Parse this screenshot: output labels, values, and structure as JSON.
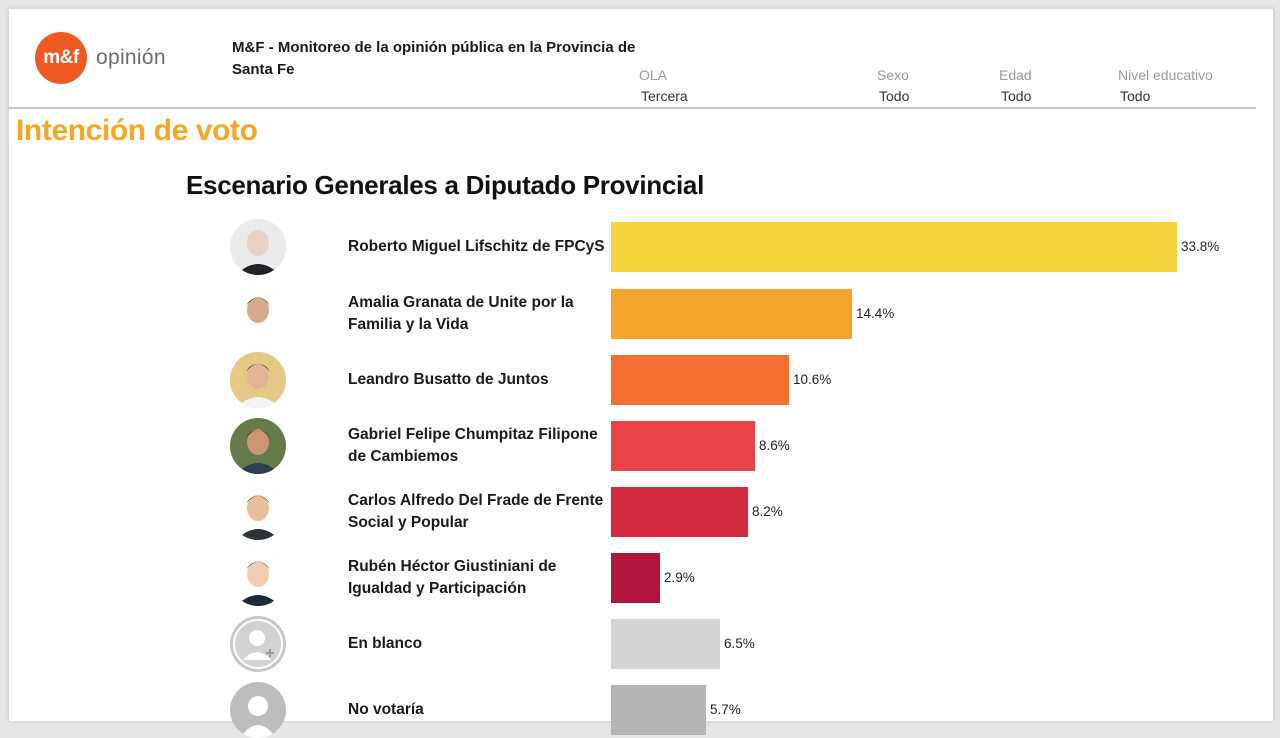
{
  "header": {
    "logo_mark": "m&f",
    "logo_word": "opinión",
    "report_title": "M&F - Monitoreo de la opinión pública en la Provincia de Santa Fe",
    "filters": [
      {
        "label": "OLA",
        "value": "Tercera"
      },
      {
        "label": "Sexo",
        "value": "Todo"
      },
      {
        "label": "Edad",
        "value": "Todo"
      },
      {
        "label": "Nivel educativo",
        "value": "Todo"
      }
    ]
  },
  "section_title": "Intención de voto",
  "colors": {
    "accent": "#f5a623",
    "logo": "#ef5a24",
    "bars": [
      "#f7d43c",
      "#f5a52c",
      "#f47032",
      "#e84348",
      "#d42a3e",
      "#b0153b",
      "#d3d3d3",
      "#b3b5b6"
    ]
  },
  "chart_data": {
    "type": "bar",
    "orientation": "horizontal",
    "title": "Escenario Generales a Diputado Provincial",
    "categories": [
      "Roberto Miguel Lifschitz de FPCyS",
      "Amalia Granata de Unite por la Familia y la Vida",
      "Leandro Busatto de Juntos",
      "Gabriel Felipe Chumpitaz Filipone de Cambiemos",
      "Carlos Alfredo Del Frade de Frente Social y Popular",
      "Rubén Héctor Giustiniani de Igualdad y Participación",
      "En blanco",
      "No votaría"
    ],
    "values": [
      33.8,
      14.4,
      10.6,
      8.6,
      8.2,
      2.9,
      6.5,
      5.7
    ],
    "value_labels": [
      "33.8%",
      "14.4%",
      "10.6%",
      "8.6%",
      "8.2%",
      "2.9%",
      "6.5%",
      "5.7%"
    ],
    "unit": "%",
    "xlim": [
      0,
      35
    ],
    "grid": false,
    "legend": "none"
  }
}
